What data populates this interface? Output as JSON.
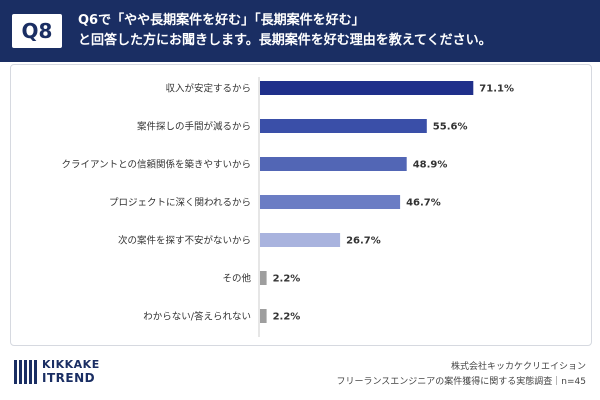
{
  "header": {
    "badge": "Q8",
    "line1": "Q6で「やや長期案件を好む」「長期案件を好む」",
    "line2": "と回答した方にお聞きします。長期案件を好む理由を教えてください。"
  },
  "colors": {
    "header_bg": "#1a2e63",
    "bar_colors": [
      "#1f2f8a",
      "#3a4fa8",
      "#5266b5",
      "#6b7dc4",
      "#a9b3de",
      "#9e9e9e",
      "#9e9e9e"
    ]
  },
  "chart_data": {
    "type": "bar",
    "orientation": "horizontal",
    "categories": [
      "収入が安定するから",
      "案件探しの手間が減るから",
      "クライアントとの信頼関係を築きやすいから",
      "プロジェクトに深く関われるから",
      "次の案件を探す不安がないから",
      "その他",
      "わからない/答えられない"
    ],
    "values": [
      71.1,
      55.6,
      48.9,
      46.7,
      26.7,
      2.2,
      2.2
    ],
    "value_labels": [
      "71.1%",
      "55.6%",
      "48.9%",
      "46.7%",
      "26.7%",
      "2.2%",
      "2.2%"
    ],
    "unit": "%",
    "xlim": [
      0,
      100
    ],
    "grid": false,
    "legend": "none"
  },
  "logo": {
    "line1": "KIKKAKE",
    "line2": "ITREND"
  },
  "credit": {
    "line1": "株式会社キッカケクリエイション",
    "line2": "フリーランスエンジニアの案件獲得に関する実態調査｜n=45"
  }
}
